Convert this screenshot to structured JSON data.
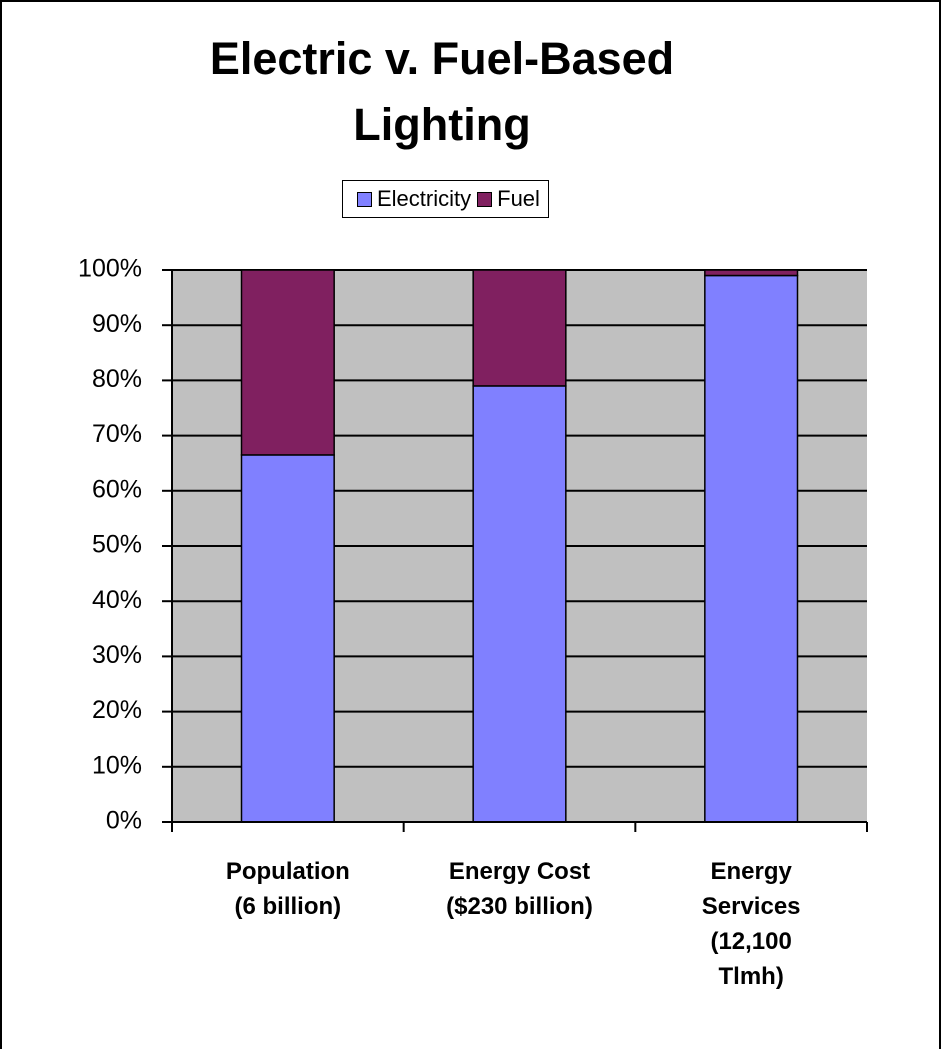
{
  "chart_data": {
    "type": "stacked_bar",
    "title": "Electric v. Fuel-Based Lighting",
    "categories": [
      "Population (6 billion)",
      "Energy Cost ($230 billion)",
      "Energy Services (12,100 Tlmh)"
    ],
    "series": [
      {
        "name": "Electricity",
        "color": "#8080ff",
        "values": [
          66.5,
          79,
          99
        ]
      },
      {
        "name": "Fuel",
        "color": "#802060",
        "values": [
          33.5,
          21,
          1
        ]
      }
    ],
    "ylim": [
      0,
      100
    ],
    "yticks": [
      {
        "value": 0,
        "label": "0%"
      },
      {
        "value": 10,
        "label": "10%"
      },
      {
        "value": 20,
        "label": "20%"
      },
      {
        "value": 30,
        "label": "30%"
      },
      {
        "value": 40,
        "label": "40%"
      },
      {
        "value": 50,
        "label": "50%"
      },
      {
        "value": 60,
        "label": "60%"
      },
      {
        "value": 70,
        "label": "70%"
      },
      {
        "value": 80,
        "label": "80%"
      },
      {
        "value": 90,
        "label": "90%"
      },
      {
        "value": 100,
        "label": "100%"
      }
    ],
    "grid": true,
    "legend": "top"
  }
}
